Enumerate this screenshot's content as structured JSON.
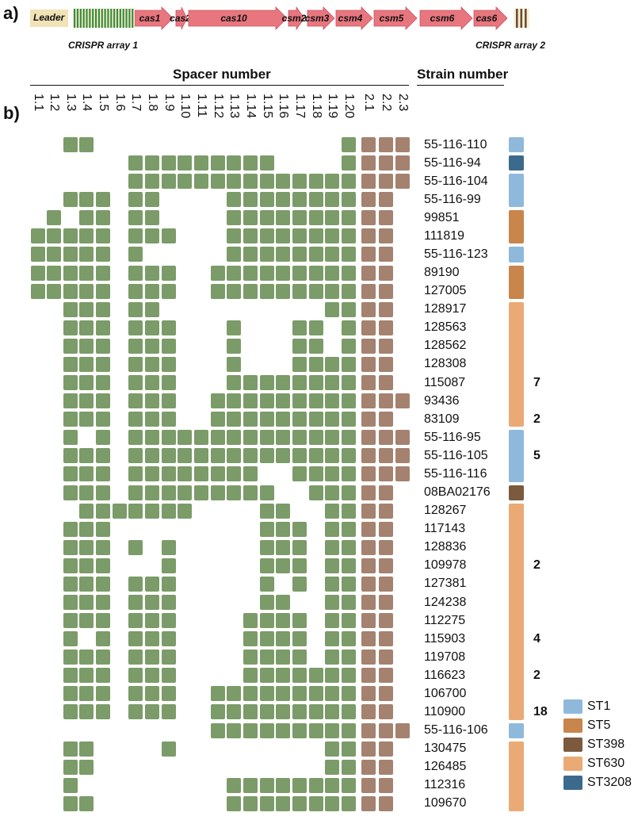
{
  "panel_a": {
    "label": "a)",
    "leader": "Leader",
    "array1": "CRISPR array 1",
    "array2": "CRISPR array 2",
    "genes": [
      "cas1",
      "cas2",
      "cas10",
      "csm2",
      "csm3",
      "csm4",
      "csm5",
      "csm6",
      "cas6"
    ]
  },
  "panel_b": {
    "label": "b)",
    "spacer_header": "Spacer number",
    "strain_header": "Strain number"
  },
  "colors": {
    "array1_spacer": "#3f8a3a",
    "array2_spacer": "#6d4c2f",
    "array1_cell": "#7b9b68",
    "array2_cell": "#a4826f",
    "gene": "#e8767f",
    "leader": "#f1e3b5"
  },
  "spacers": [
    "1.1",
    "1.2",
    "1.3",
    "1.4",
    "1.5",
    "1.6",
    "1.7",
    "1.8",
    "1.9",
    "1.10",
    "1.11",
    "1.12",
    "1.13",
    "1.14",
    "1.15",
    "1.16",
    "1.17",
    "1.18",
    "1.19",
    "1.20",
    "2.1",
    "2.2",
    "2.3"
  ],
  "strains": [
    {
      "name": "55-116-110",
      "pattern": "00110000000000000001111"
    },
    {
      "name": "55-116-94",
      "pattern": "00000011111111100001111"
    },
    {
      "name": "55-116-104",
      "pattern": "00000011111111111111111"
    },
    {
      "name": "55-116-99",
      "pattern": "00111011000011111111110"
    },
    {
      "name": "99851",
      "pattern": "01011011000011111111110"
    },
    {
      "name": "111819",
      "pattern": "11111011100011111111110"
    },
    {
      "name": "55-116-123",
      "pattern": "11111010000011111111110"
    },
    {
      "name": "89190",
      "pattern": "11111011100111111111110"
    },
    {
      "name": "127005",
      "pattern": "11111011100111111111110"
    },
    {
      "name": "128917",
      "pattern": "00111011000000000011110"
    },
    {
      "name": "128563",
      "pattern": "00111011100010001101110"
    },
    {
      "name": "128562",
      "pattern": "00111011100010001101110"
    },
    {
      "name": "128308",
      "pattern": "00111011100010001111110"
    },
    {
      "name": "115087",
      "pattern": "00111011100011111111110"
    },
    {
      "name": "93436",
      "pattern": "00111011100111111111111"
    },
    {
      "name": "83109",
      "pattern": "00111011100111111111110"
    },
    {
      "name": "55-116-95",
      "pattern": "00101011111111111111111"
    },
    {
      "name": "55-116-105",
      "pattern": "00111011111111111111111"
    },
    {
      "name": "55-116-116",
      "pattern": "00111011111111001111111"
    },
    {
      "name": "08BA02176",
      "pattern": "00111011111111100111110"
    },
    {
      "name": "128267",
      "pattern": "00011111110000110011110"
    },
    {
      "name": "117143",
      "pattern": "00111000000000111011110"
    },
    {
      "name": "128836",
      "pattern": "00111010100000111011110"
    },
    {
      "name": "109978",
      "pattern": "00111000100000111011110"
    },
    {
      "name": "127381",
      "pattern": "00111011100000101011110"
    },
    {
      "name": "124238",
      "pattern": "00111011100000110011110"
    },
    {
      "name": "112275",
      "pattern": "00111011100001111011110"
    },
    {
      "name": "115903",
      "pattern": "00101011100001111011110"
    },
    {
      "name": "119708",
      "pattern": "00111011100001111011110"
    },
    {
      "name": "116623",
      "pattern": "00111011100001111111110"
    },
    {
      "name": "106700",
      "pattern": "00111011100111111111110"
    },
    {
      "name": "110900",
      "pattern": "00111011100111111111110"
    },
    {
      "name": "55-116-106",
      "pattern": "00000000000111111111111"
    },
    {
      "name": "130475",
      "pattern": "00110000100000000011110"
    },
    {
      "name": "126485",
      "pattern": "00110000000000000011110"
    },
    {
      "name": "112316",
      "pattern": "00100000000011111111110"
    },
    {
      "name": "109670",
      "pattern": "00110000000011111111110"
    }
  ],
  "st_groups": [
    {
      "st": "ST1",
      "start": 0,
      "count": 1
    },
    {
      "st": "ST3208",
      "start": 1,
      "count": 1
    },
    {
      "st": "ST1",
      "start": 2,
      "count": 2
    },
    {
      "st": "ST5",
      "start": 4,
      "count": 2
    },
    {
      "st": "ST1",
      "start": 6,
      "count": 1
    },
    {
      "st": "ST5",
      "start": 7,
      "count": 2
    },
    {
      "st": "ST630",
      "start": 9,
      "count": 7
    },
    {
      "st": "ST1",
      "start": 16,
      "count": 3
    },
    {
      "st": "ST398",
      "start": 19,
      "count": 1
    },
    {
      "st": "ST630",
      "start": 20,
      "count": 12
    },
    {
      "st": "ST1",
      "start": 32,
      "count": 1
    },
    {
      "st": "ST630",
      "start": 33,
      "count": 4
    }
  ],
  "counts": [
    {
      "row": 13,
      "value": "7"
    },
    {
      "row": 15,
      "value": "2"
    },
    {
      "row": 17,
      "value": "5"
    },
    {
      "row": 23,
      "value": "2"
    },
    {
      "row": 27,
      "value": "4"
    },
    {
      "row": 29,
      "value": "2"
    },
    {
      "row": 31,
      "value": "18"
    }
  ],
  "legend": [
    {
      "st": "ST1",
      "color": "#8fb9db"
    },
    {
      "st": "ST5",
      "color": "#c8854c"
    },
    {
      "st": "ST398",
      "color": "#7b5a3e"
    },
    {
      "st": "ST630",
      "color": "#e9aa76"
    },
    {
      "st": "ST3208",
      "color": "#3c6a8d"
    }
  ]
}
